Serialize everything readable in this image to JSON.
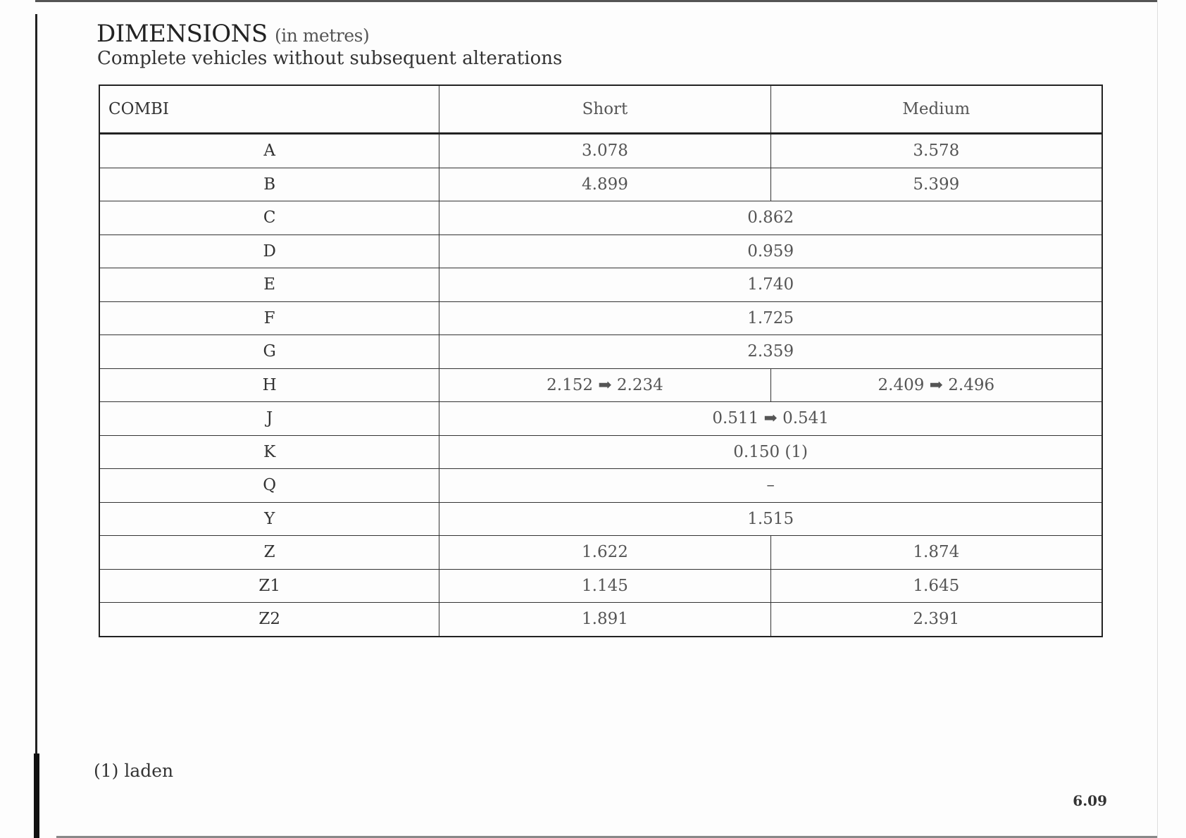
{
  "title": "DIMENSIONS",
  "title_unit": "(in metres)",
  "subtitle": "Complete vehicles without subsequent alterations",
  "table": {
    "headers": [
      "COMBI",
      "Short",
      "Medium"
    ],
    "rows": [
      {
        "label": "A",
        "short": "3.078",
        "medium": "3.578"
      },
      {
        "label": "B",
        "short": "4.899",
        "medium": "5.399"
      },
      {
        "label": "C",
        "both": "0.862"
      },
      {
        "label": "D",
        "both": "0.959"
      },
      {
        "label": "E",
        "both": "1.740"
      },
      {
        "label": "F",
        "both": "1.725"
      },
      {
        "label": "G",
        "both": "2.359"
      },
      {
        "label": "H",
        "short": "2.152 ➡ 2.234",
        "medium": "2.409 ➡ 2.496"
      },
      {
        "label": "J",
        "both": "0.511 ➡ 0.541"
      },
      {
        "label": "K",
        "both": "0.150 (1)"
      },
      {
        "label": "Q",
        "both": "–"
      },
      {
        "label": "Y",
        "both": "1.515"
      },
      {
        "label": "Z",
        "short": "1.622",
        "medium": "1.874"
      },
      {
        "label": "Z1",
        "short": "1.145",
        "medium": "1.645"
      },
      {
        "label": "Z2",
        "short": "1.891",
        "medium": "2.391"
      }
    ]
  },
  "footnote": "(1) laden",
  "page_number": "6.09"
}
